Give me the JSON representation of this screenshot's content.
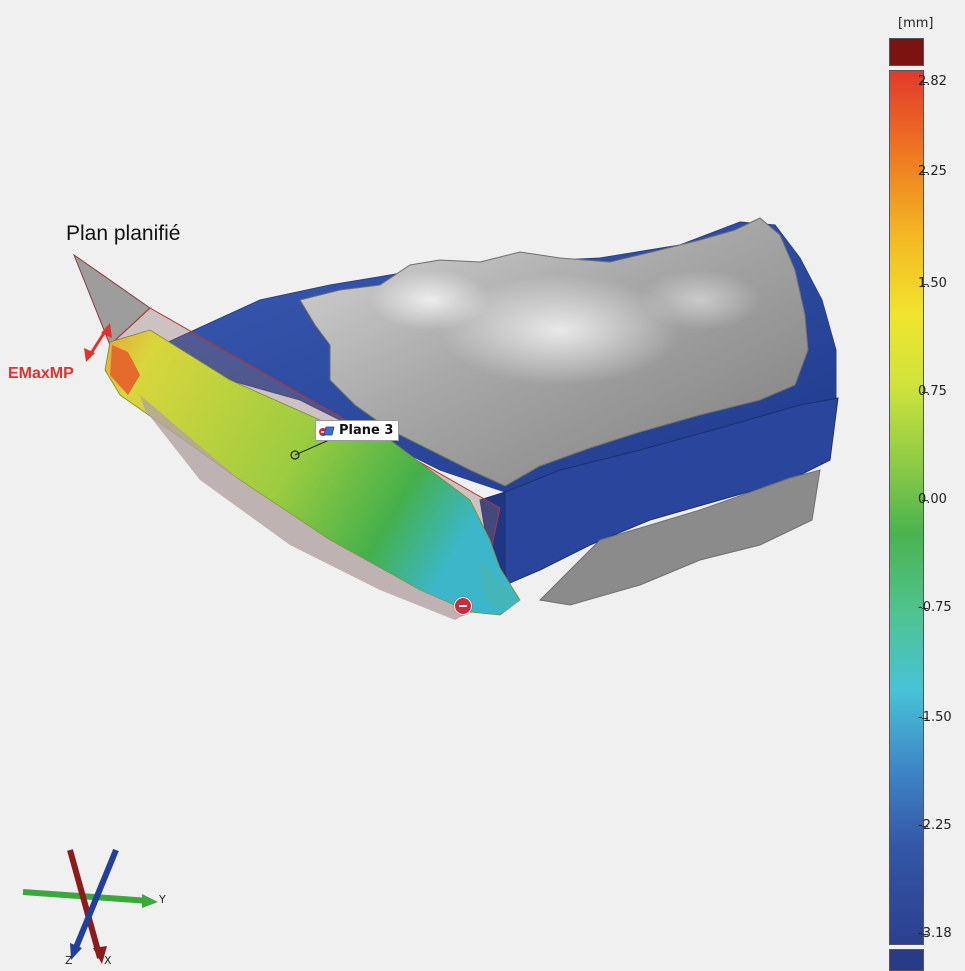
{
  "annotations": {
    "plan_label": "Plan planifié",
    "emax_label": "EMaxMP",
    "plane_tag": "Plane 3"
  },
  "legend": {
    "unit": "[mm]",
    "ticks": [
      "2.82",
      "2.25",
      "1.50",
      "0.75",
      "0.00",
      "-0.75",
      "-1.50",
      "-2.25",
      "-3.18"
    ],
    "range": [
      -3.18,
      2.82
    ]
  },
  "axes": {
    "y_label": "Y",
    "z_label": "Z",
    "x_label": "X"
  },
  "colors": {
    "background": "#f0f0f0",
    "emax": "#e2322c",
    "bone": "#9b9b9b",
    "deviation_negative": "#3452a4",
    "deviation_zero": "#5fba4a",
    "deviation_positive": "#e2392c"
  }
}
